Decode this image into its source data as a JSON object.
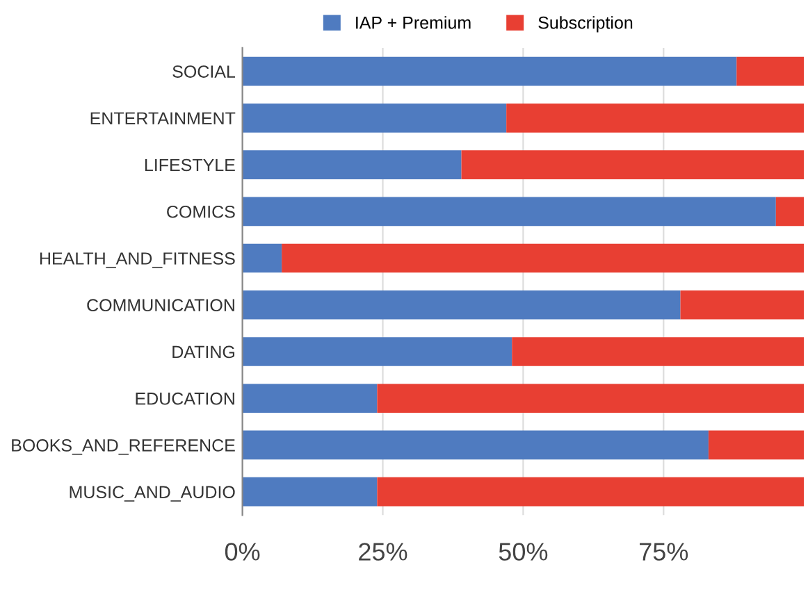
{
  "chart_data": {
    "type": "bar",
    "orientation": "horizontal",
    "stacked": true,
    "categories": [
      "SOCIAL",
      "ENTERTAINMENT",
      "LIFESTYLE",
      "COMICS",
      "HEALTH_AND_FITNESS",
      "COMMUNICATION",
      "DATING",
      "EDUCATION",
      "BOOKS_AND_REFERENCE",
      "MUSIC_AND_AUDIO"
    ],
    "series": [
      {
        "name": "IAP + Premium",
        "color": "#4f7bc0",
        "values": [
          88,
          47,
          39,
          95,
          7,
          78,
          48,
          24,
          83,
          24
        ]
      },
      {
        "name": "Subscription",
        "color": "#e83f33",
        "values": [
          12,
          53,
          61,
          5,
          93,
          22,
          52,
          76,
          17,
          76
        ]
      }
    ],
    "xlim": [
      0,
      100
    ],
    "xticks": [
      {
        "value": 0,
        "label": "0%"
      },
      {
        "value": 25,
        "label": "25%"
      },
      {
        "value": 50,
        "label": "50%"
      },
      {
        "value": 75,
        "label": "75%"
      }
    ],
    "grid": "x",
    "legend": "top"
  }
}
